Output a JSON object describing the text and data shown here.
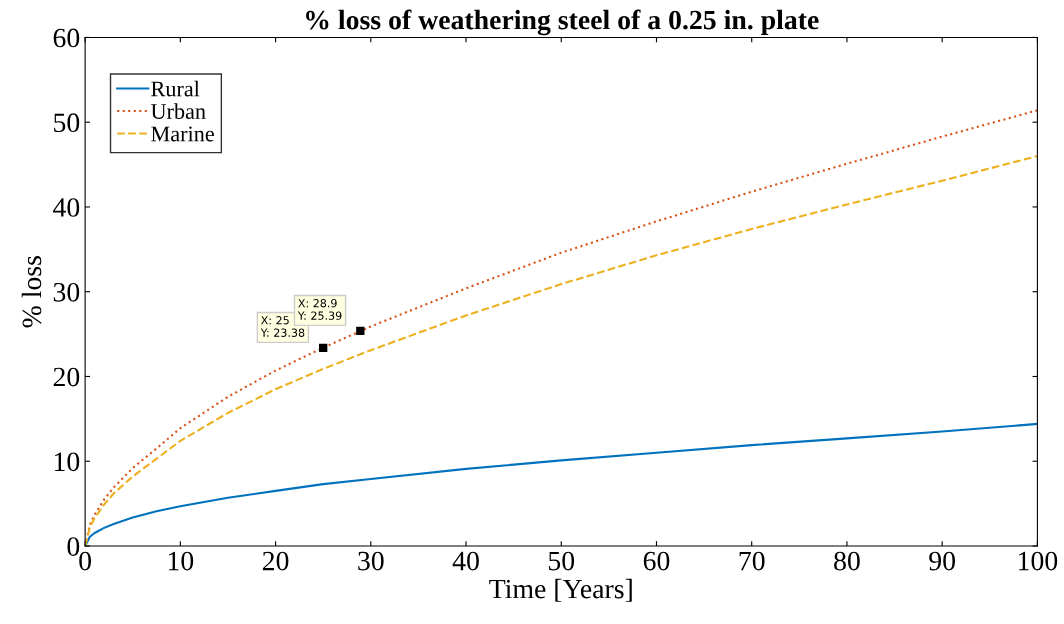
{
  "chart_data": {
    "type": "line",
    "title": "% loss of weathering steel of a 0.25 in. plate",
    "xlabel": "Time [Years]",
    "ylabel": "% loss",
    "x": [
      0,
      0.5,
      1,
      2,
      3,
      5,
      7.5,
      10,
      15,
      20,
      25,
      30,
      40,
      50,
      60,
      70,
      80,
      90,
      100
    ],
    "series": [
      {
        "name": "Rural",
        "color": "#0072bd",
        "line_style": "solid",
        "values": [
          0,
          1.09,
          1.53,
          2.14,
          2.6,
          3.35,
          4.1,
          4.7,
          5.7,
          6.5,
          7.3,
          7.9,
          9.1,
          10.1,
          11.0,
          11.9,
          12.7,
          13.5,
          14.4
        ]
      },
      {
        "name": "Urban",
        "color": "#d95319",
        "line_style": "dotted",
        "values": [
          0,
          2.5,
          3.7,
          5.5,
          6.9,
          9.2,
          11.5,
          13.9,
          17.6,
          20.7,
          23.4,
          25.9,
          30.4,
          34.6,
          38.3,
          41.8,
          45.1,
          48.3,
          51.4
        ]
      },
      {
        "name": "Marine",
        "color": "#edb120",
        "line_style": "dashed",
        "values": [
          0,
          2.2,
          3.3,
          4.9,
          6.2,
          8.2,
          10.3,
          12.4,
          15.7,
          18.5,
          20.9,
          23.1,
          27.2,
          30.9,
          34.3,
          37.4,
          40.3,
          43.1,
          46.0
        ]
      }
    ],
    "annotations": [
      {
        "text": "X: 25\nY: 23.38",
        "x": 25,
        "y": 23.38
      },
      {
        "text": "X: 28.9\nY: 25.39",
        "x": 28.9,
        "y": 25.39
      }
    ],
    "xlim": [
      0,
      100
    ],
    "xticks": [
      0,
      10,
      20,
      30,
      40,
      50,
      60,
      70,
      80,
      90,
      100
    ],
    "ylim": [
      0,
      60
    ],
    "yticks": [
      0,
      10,
      20,
      30,
      40,
      50,
      60
    ],
    "grid": false,
    "legend": "top left",
    "marker": "none"
  }
}
